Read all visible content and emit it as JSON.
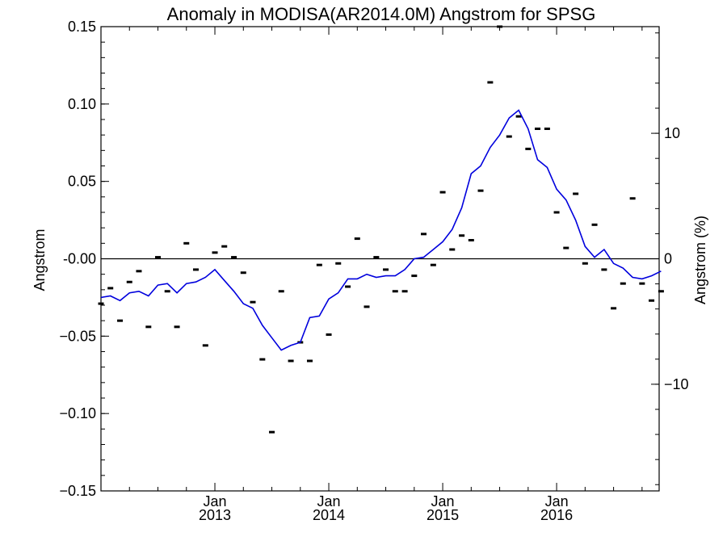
{
  "chart_data": {
    "type": "line",
    "title": "Anomaly in MODISA(AR2014.0M) Angstrom for SPSG",
    "ylabel": "Angstrom",
    "y2label": "Angstrom (%)",
    "ylim": [
      -0.15,
      0.15
    ],
    "y2lim": [
      -18.5,
      18.5
    ],
    "xlim": [
      2012.0,
      2016.9
    ],
    "y_ticks": [
      -0.15,
      -0.1,
      -0.05,
      0.0,
      0.05,
      0.1,
      0.15
    ],
    "y_tick_labels": [
      "−0.15",
      "−0.10",
      "−0.05",
      "-0.00",
      "0.05",
      "0.10",
      "0.15"
    ],
    "y2_ticks": [
      -10,
      0,
      10
    ],
    "y2_tick_labels": [
      "−10",
      "0",
      "10"
    ],
    "x_ticks": [
      {
        "x": 2013.0,
        "line1": "Jan",
        "line2": "2013"
      },
      {
        "x": 2014.0,
        "line1": "Jan",
        "line2": "2014"
      },
      {
        "x": 2015.0,
        "line1": "Jan",
        "line2": "2015"
      },
      {
        "x": 2016.0,
        "line1": "Jan",
        "line2": "2016"
      }
    ],
    "zero_line": true,
    "grid": false,
    "series": [
      {
        "kind": "monthly-anomaly-points",
        "color": "#000000",
        "points": [
          [
            2012.0,
            -0.029
          ],
          [
            2012.083,
            -0.019
          ],
          [
            2012.167,
            -0.04
          ],
          [
            2012.25,
            -0.015
          ],
          [
            2012.333,
            -0.008
          ],
          [
            2012.417,
            -0.044
          ],
          [
            2012.5,
            0.001
          ],
          [
            2012.583,
            -0.021
          ],
          [
            2012.667,
            -0.044
          ],
          [
            2012.75,
            0.01
          ],
          [
            2012.833,
            -0.007
          ],
          [
            2012.917,
            -0.056
          ],
          [
            2013.0,
            0.004
          ],
          [
            2013.083,
            0.008
          ],
          [
            2013.167,
            0.001
          ],
          [
            2013.25,
            -0.009
          ],
          [
            2013.333,
            -0.028
          ],
          [
            2013.417,
            -0.065
          ],
          [
            2013.5,
            -0.112
          ],
          [
            2013.583,
            -0.021
          ],
          [
            2013.667,
            -0.066
          ],
          [
            2013.75,
            -0.054
          ],
          [
            2013.833,
            -0.066
          ],
          [
            2013.917,
            -0.004
          ],
          [
            2014.0,
            -0.049
          ],
          [
            2014.083,
            -0.003
          ],
          [
            2014.167,
            -0.018
          ],
          [
            2014.25,
            0.013
          ],
          [
            2014.333,
            -0.031
          ],
          [
            2014.417,
            0.001
          ],
          [
            2014.5,
            -0.007
          ],
          [
            2014.583,
            -0.021
          ],
          [
            2014.667,
            -0.021
          ],
          [
            2014.75,
            -0.011
          ],
          [
            2014.833,
            0.016
          ],
          [
            2014.917,
            -0.004
          ],
          [
            2015.0,
            0.043
          ],
          [
            2015.083,
            0.006
          ],
          [
            2015.167,
            0.015
          ],
          [
            2015.25,
            0.012
          ],
          [
            2015.333,
            0.044
          ],
          [
            2015.417,
            0.114
          ],
          [
            2015.5,
            0.15
          ],
          [
            2015.583,
            0.079
          ],
          [
            2015.667,
            0.092
          ],
          [
            2015.75,
            0.071
          ],
          [
            2015.833,
            0.084
          ],
          [
            2015.917,
            0.084
          ],
          [
            2016.0,
            0.03
          ],
          [
            2016.083,
            0.007
          ],
          [
            2016.167,
            0.042
          ],
          [
            2016.25,
            -0.003
          ],
          [
            2016.333,
            0.022
          ],
          [
            2016.417,
            -0.007
          ],
          [
            2016.5,
            -0.032
          ],
          [
            2016.583,
            -0.016
          ],
          [
            2016.667,
            0.039
          ],
          [
            2016.75,
            -0.016
          ],
          [
            2016.833,
            -0.027
          ],
          [
            2016.917,
            -0.021
          ]
        ]
      },
      {
        "kind": "running-mean-line",
        "color": "#0000dd",
        "points": [
          [
            2012.0,
            -0.025
          ],
          [
            2012.083,
            -0.024
          ],
          [
            2012.167,
            -0.027
          ],
          [
            2012.25,
            -0.022
          ],
          [
            2012.333,
            -0.021
          ],
          [
            2012.417,
            -0.024
          ],
          [
            2012.5,
            -0.017
          ],
          [
            2012.583,
            -0.016
          ],
          [
            2012.667,
            -0.022
          ],
          [
            2012.75,
            -0.016
          ],
          [
            2012.833,
            -0.015
          ],
          [
            2012.917,
            -0.012
          ],
          [
            2013.0,
            -0.007
          ],
          [
            2013.083,
            -0.014
          ],
          [
            2013.167,
            -0.021
          ],
          [
            2013.25,
            -0.029
          ],
          [
            2013.333,
            -0.032
          ],
          [
            2013.417,
            -0.043
          ],
          [
            2013.5,
            -0.051
          ],
          [
            2013.583,
            -0.059
          ],
          [
            2013.667,
            -0.056
          ],
          [
            2013.75,
            -0.054
          ],
          [
            2013.833,
            -0.038
          ],
          [
            2013.917,
            -0.037
          ],
          [
            2014.0,
            -0.026
          ],
          [
            2014.083,
            -0.022
          ],
          [
            2014.167,
            -0.013
          ],
          [
            2014.25,
            -0.013
          ],
          [
            2014.333,
            -0.01
          ],
          [
            2014.417,
            -0.012
          ],
          [
            2014.5,
            -0.011
          ],
          [
            2014.583,
            -0.011
          ],
          [
            2014.667,
            -0.007
          ],
          [
            2014.75,
            0.0
          ],
          [
            2014.833,
            0.001
          ],
          [
            2014.917,
            0.006
          ],
          [
            2015.0,
            0.011
          ],
          [
            2015.083,
            0.019
          ],
          [
            2015.167,
            0.033
          ],
          [
            2015.25,
            0.055
          ],
          [
            2015.333,
            0.06
          ],
          [
            2015.417,
            0.072
          ],
          [
            2015.5,
            0.08
          ],
          [
            2015.583,
            0.091
          ],
          [
            2015.667,
            0.096
          ],
          [
            2015.75,
            0.084
          ],
          [
            2015.833,
            0.064
          ],
          [
            2015.917,
            0.059
          ],
          [
            2016.0,
            0.045
          ],
          [
            2016.083,
            0.038
          ],
          [
            2016.167,
            0.025
          ],
          [
            2016.25,
            0.008
          ],
          [
            2016.333,
            0.001
          ],
          [
            2016.417,
            0.006
          ],
          [
            2016.5,
            -0.003
          ],
          [
            2016.583,
            -0.006
          ],
          [
            2016.667,
            -0.012
          ],
          [
            2016.75,
            -0.013
          ],
          [
            2016.833,
            -0.011
          ],
          [
            2016.917,
            -0.008
          ]
        ]
      }
    ]
  }
}
